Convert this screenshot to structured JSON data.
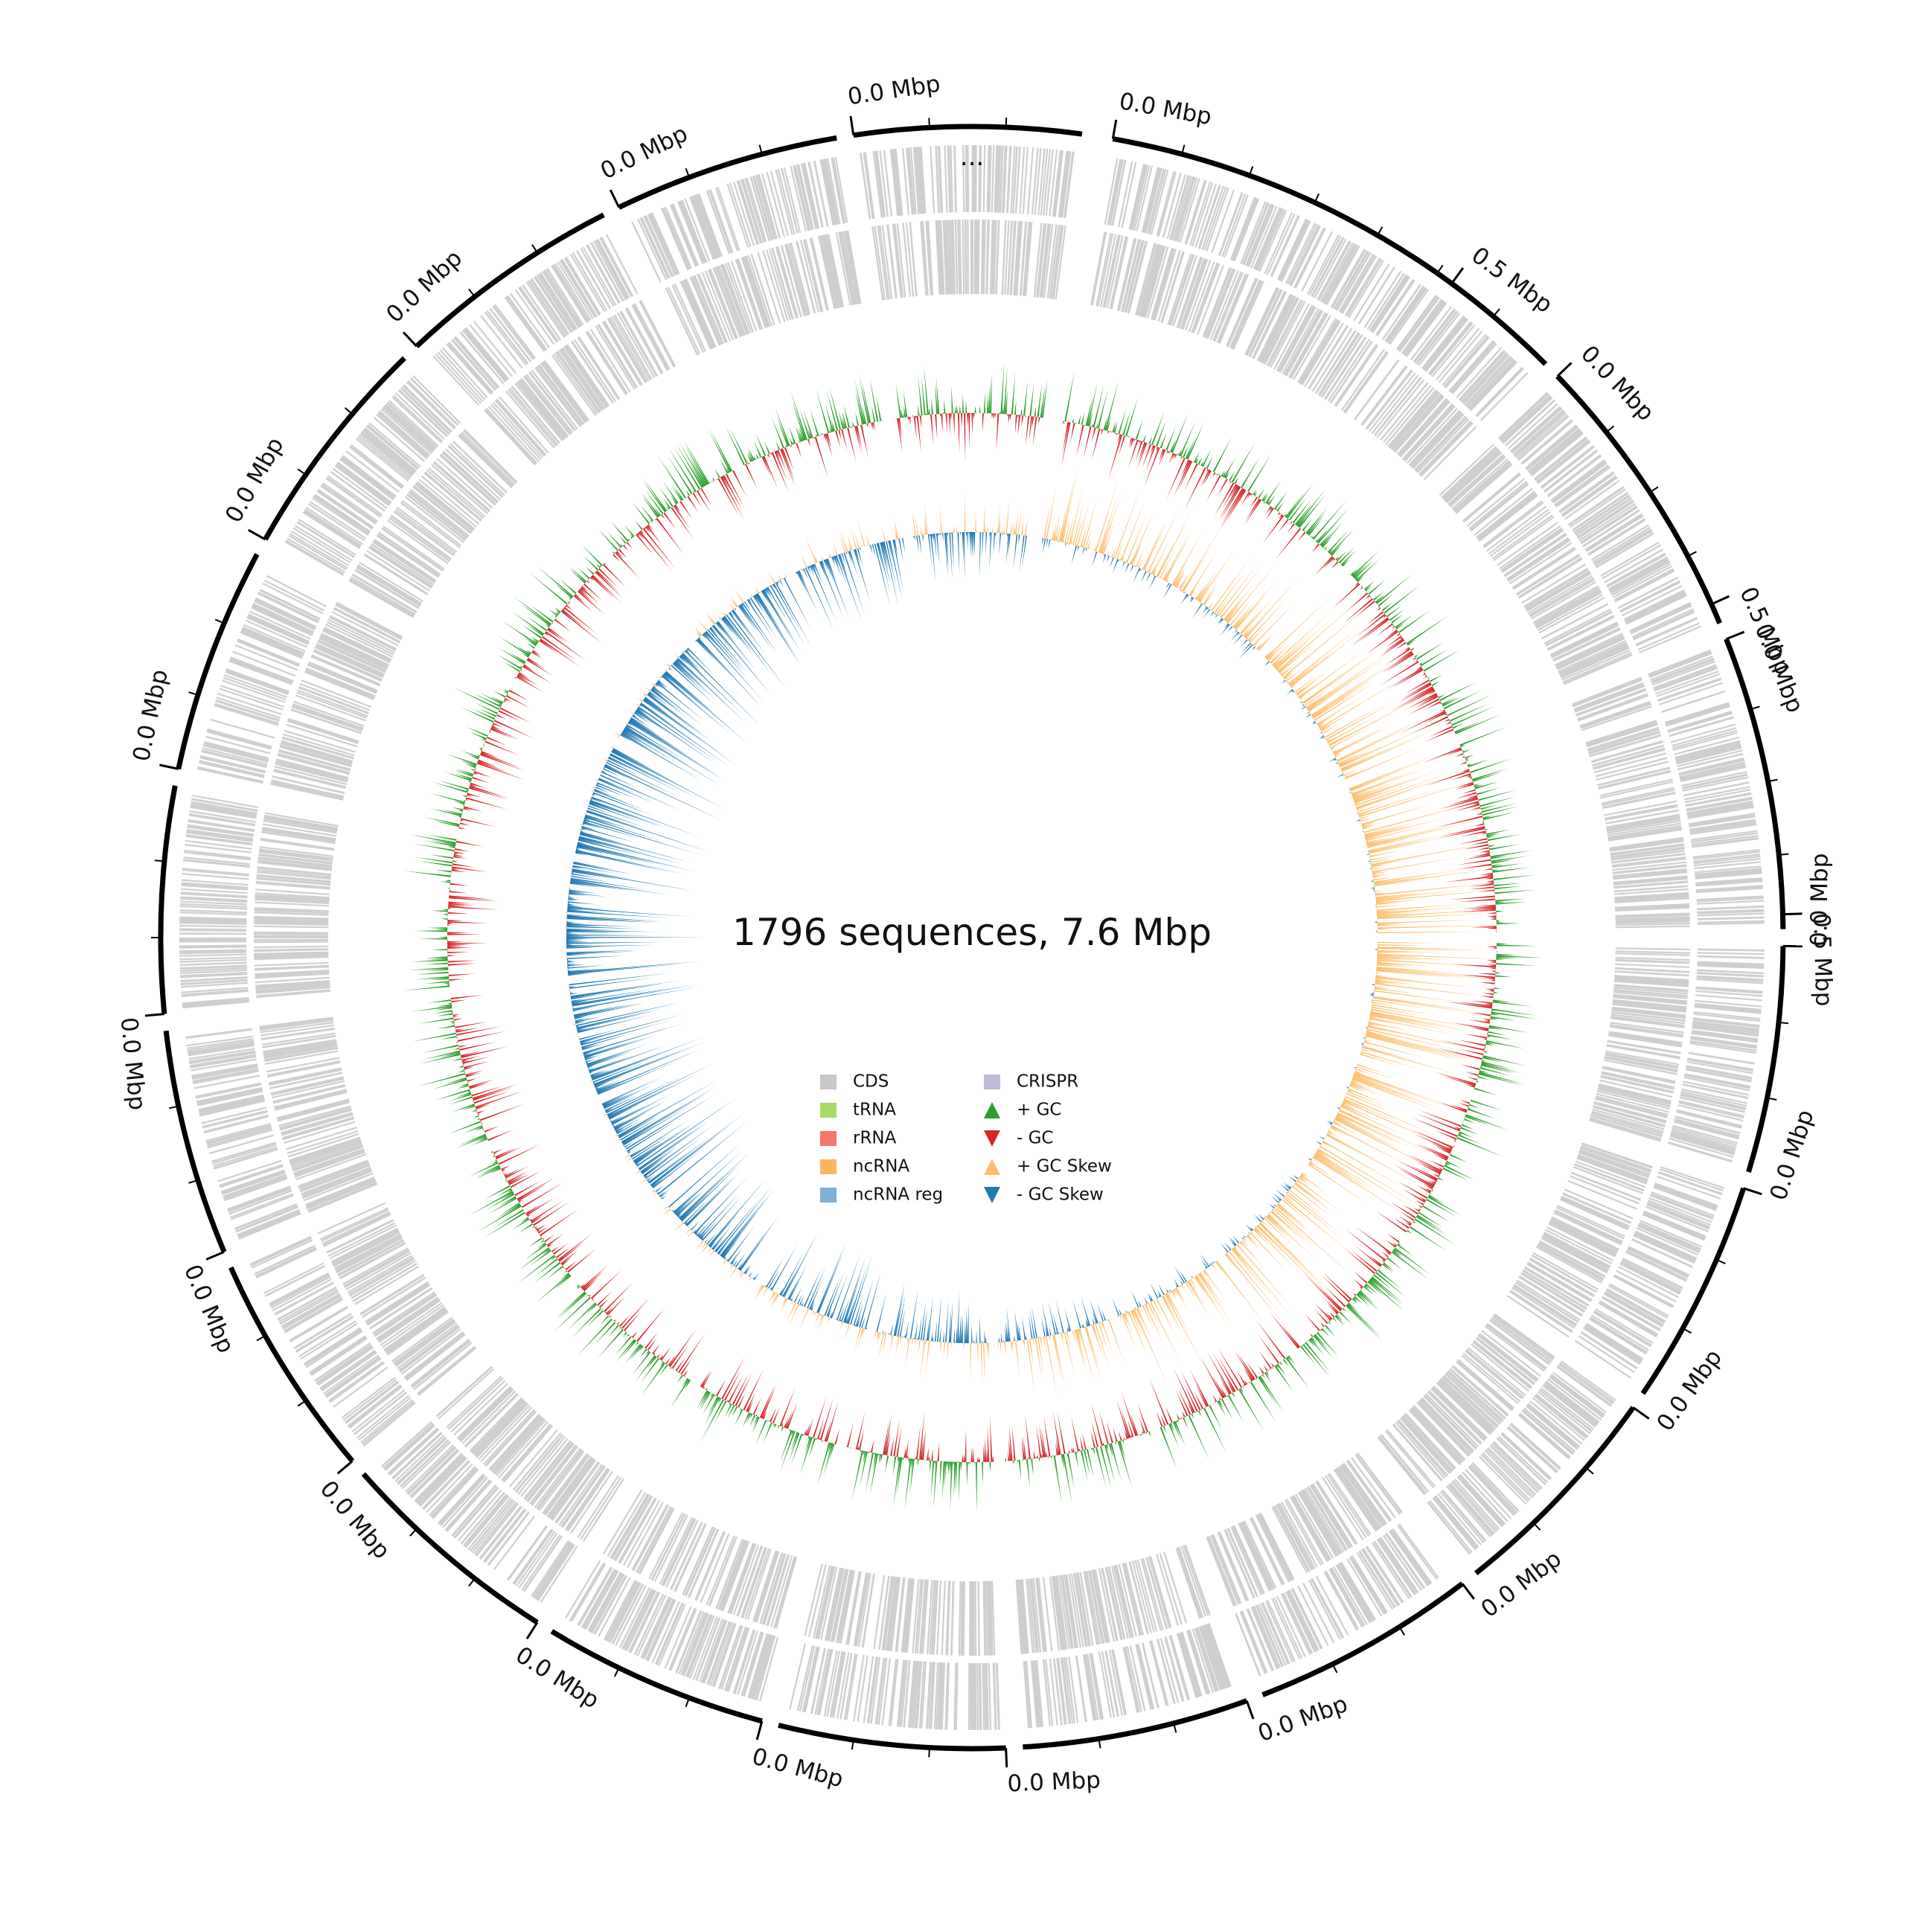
{
  "title": "1796 sequences, 7.6 Mbp",
  "ellipsis": "...",
  "legend": {
    "items": [
      {
        "label": "CDS",
        "color": "#c8c8c8",
        "marker": "square"
      },
      {
        "label": "tRNA",
        "color": "#a6d96a",
        "marker": "square"
      },
      {
        "label": "rRNA",
        "color": "#f4796b",
        "marker": "square"
      },
      {
        "label": "ncRNA",
        "color": "#fdb462",
        "marker": "square"
      },
      {
        "label": "ncRNA reg",
        "color": "#7fb0d6",
        "marker": "square"
      },
      {
        "label": "CRISPR",
        "color": "#bebada",
        "marker": "square"
      },
      {
        "label": "+ GC",
        "color": "#2ca02c",
        "marker": "triangle-up"
      },
      {
        "label": "- GC",
        "color": "#d62728",
        "marker": "triangle-down"
      },
      {
        "label": "+ GC Skew",
        "color": "#fdbf6f",
        "marker": "triangle-up"
      },
      {
        "label": "- GC Skew",
        "color": "#1f78b4",
        "marker": "triangle-down"
      }
    ]
  },
  "colors": {
    "cds": "#cfcfcf",
    "gc_plus": "#2ca02c",
    "gc_minus": "#d62728",
    "skew_plus": "#fdbf6f",
    "skew_minus": "#1f78b4",
    "axis": "#000000"
  },
  "segments": [
    {
      "start_label": "0.0 Mbp",
      "ticks": [
        {
          "label": "0.5 Mbp",
          "at": 0.75
        }
      ]
    },
    {
      "start_label": "0.0 Mbp",
      "ticks": [
        {
          "label": "0.5 Mbp",
          "at": 0.93
        }
      ]
    },
    {
      "start_label": "0.0 Mbp",
      "ticks": [
        {
          "label": "0.5 Mbp",
          "at": 0.95
        }
      ]
    },
    {
      "start_label": "0.0 Mbp",
      "ticks": []
    },
    {
      "start_label": "0.0 Mbp",
      "ticks": []
    },
    {
      "start_label": "0.0 Mbp",
      "ticks": []
    },
    {
      "start_label": "0.0 Mbp",
      "ticks": []
    },
    {
      "start_label": "0.0 Mbp",
      "ticks": []
    },
    {
      "start_label": "0.0 Mbp",
      "ticks": []
    },
    {
      "start_label": "0.0 Mbp",
      "ticks": []
    },
    {
      "start_label": "0.0 Mbp",
      "ticks": []
    },
    {
      "start_label": "0.0 Mbp",
      "ticks": []
    },
    {
      "start_label": "0.0 Mbp",
      "ticks": []
    },
    {
      "start_label": "0.0 Mbp",
      "ticks": []
    },
    {
      "start_label": "0.0 Mbp",
      "ticks": []
    },
    {
      "start_label": "0.0 Mbp",
      "ticks": []
    },
    {
      "start_label": "0.0 Mbp",
      "ticks": []
    },
    {
      "start_label": "0.0 Mbp",
      "ticks": []
    },
    {
      "start_label": "0.0 Mbp",
      "ticks": []
    }
  ]
}
